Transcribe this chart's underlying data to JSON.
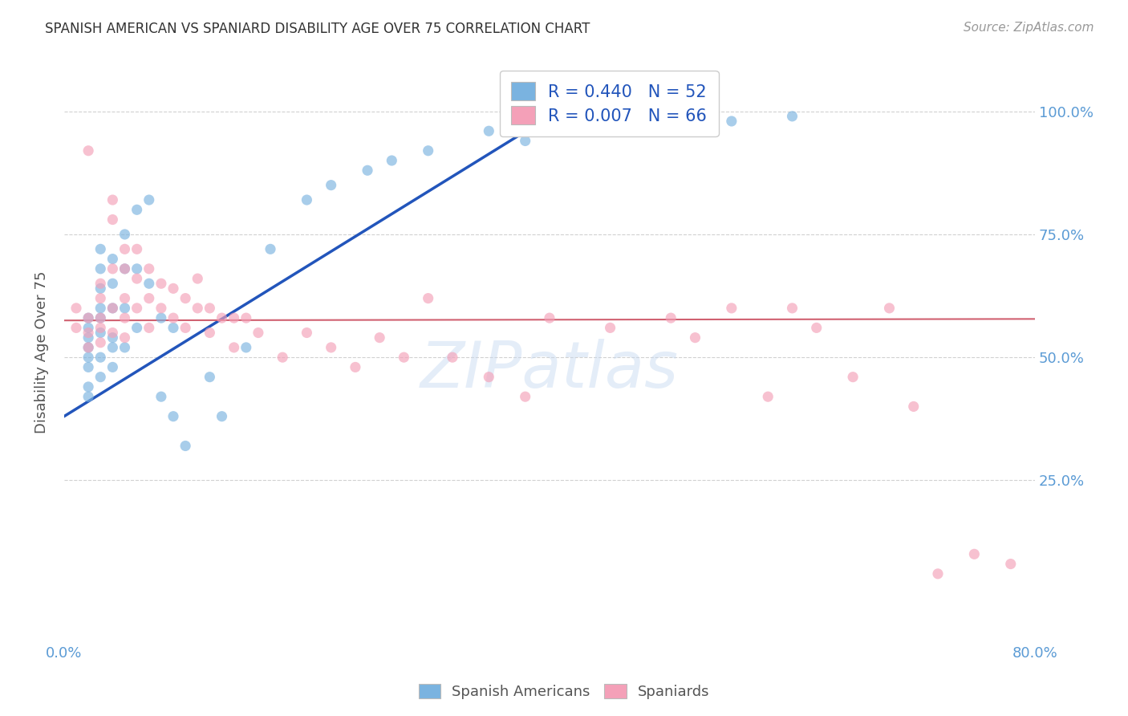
{
  "title": "SPANISH AMERICAN VS SPANIARD DISABILITY AGE OVER 75 CORRELATION CHART",
  "source": "Source: ZipAtlas.com",
  "ylabel": "Disability Age Over 75",
  "legend_R_blue": "R = 0.440   N = 52",
  "legend_R_pink": "R = 0.007   N = 66",
  "watermark": "ZIPatlas",
  "blue_color": "#7ab3e0",
  "pink_color": "#f4a0b8",
  "blue_line_color": "#2255bb",
  "pink_line_color": "#d06070",
  "legend_blue_label": "Spanish Americans",
  "legend_pink_label": "Spaniards",
  "xlim": [
    0.0,
    0.8
  ],
  "ylim": [
    -0.08,
    1.1
  ],
  "ytick_vals": [
    0.25,
    0.5,
    0.75,
    1.0
  ],
  "ytick_labels": [
    "25.0%",
    "50.0%",
    "75.0%",
    "100.0%"
  ],
  "xtick_show": {
    "0.0": "0.0%",
    "0.8": "80.0%"
  },
  "blue_scatter_x": [
    0.02,
    0.02,
    0.02,
    0.02,
    0.02,
    0.02,
    0.02,
    0.02,
    0.03,
    0.03,
    0.03,
    0.03,
    0.03,
    0.03,
    0.03,
    0.03,
    0.04,
    0.04,
    0.04,
    0.04,
    0.04,
    0.04,
    0.05,
    0.05,
    0.05,
    0.05,
    0.06,
    0.06,
    0.06,
    0.07,
    0.07,
    0.08,
    0.08,
    0.09,
    0.09,
    0.1,
    0.12,
    0.13,
    0.15,
    0.17,
    0.2,
    0.22,
    0.25,
    0.27,
    0.3,
    0.35,
    0.38,
    0.42,
    0.45,
    0.5,
    0.55,
    0.6
  ],
  "blue_scatter_y": [
    0.56,
    0.54,
    0.52,
    0.58,
    0.5,
    0.48,
    0.44,
    0.42,
    0.6,
    0.58,
    0.55,
    0.68,
    0.64,
    0.72,
    0.5,
    0.46,
    0.7,
    0.65,
    0.6,
    0.54,
    0.52,
    0.48,
    0.75,
    0.68,
    0.6,
    0.52,
    0.8,
    0.68,
    0.56,
    0.82,
    0.65,
    0.58,
    0.42,
    0.56,
    0.38,
    0.32,
    0.46,
    0.38,
    0.52,
    0.72,
    0.82,
    0.85,
    0.88,
    0.9,
    0.92,
    0.96,
    0.94,
    0.98,
    0.99,
    1.0,
    0.98,
    0.99
  ],
  "pink_scatter_x": [
    0.01,
    0.01,
    0.02,
    0.02,
    0.02,
    0.02,
    0.03,
    0.03,
    0.03,
    0.03,
    0.03,
    0.04,
    0.04,
    0.04,
    0.04,
    0.04,
    0.05,
    0.05,
    0.05,
    0.05,
    0.05,
    0.06,
    0.06,
    0.06,
    0.07,
    0.07,
    0.07,
    0.08,
    0.08,
    0.09,
    0.09,
    0.1,
    0.1,
    0.11,
    0.11,
    0.12,
    0.12,
    0.13,
    0.14,
    0.14,
    0.15,
    0.16,
    0.18,
    0.2,
    0.22,
    0.24,
    0.26,
    0.28,
    0.3,
    0.32,
    0.35,
    0.38,
    0.4,
    0.45,
    0.5,
    0.52,
    0.55,
    0.58,
    0.6,
    0.62,
    0.65,
    0.68,
    0.7,
    0.72,
    0.75,
    0.78
  ],
  "pink_scatter_y": [
    0.6,
    0.56,
    0.92,
    0.58,
    0.55,
    0.52,
    0.65,
    0.62,
    0.58,
    0.56,
    0.53,
    0.82,
    0.78,
    0.68,
    0.6,
    0.55,
    0.72,
    0.68,
    0.62,
    0.58,
    0.54,
    0.72,
    0.66,
    0.6,
    0.68,
    0.62,
    0.56,
    0.65,
    0.6,
    0.64,
    0.58,
    0.62,
    0.56,
    0.66,
    0.6,
    0.6,
    0.55,
    0.58,
    0.58,
    0.52,
    0.58,
    0.55,
    0.5,
    0.55,
    0.52,
    0.48,
    0.54,
    0.5,
    0.62,
    0.5,
    0.46,
    0.42,
    0.58,
    0.56,
    0.58,
    0.54,
    0.6,
    0.42,
    0.6,
    0.56,
    0.46,
    0.6,
    0.4,
    0.06,
    0.1,
    0.08
  ],
  "blue_line_x": [
    0.0,
    0.42
  ],
  "blue_line_y": [
    0.38,
    1.02
  ],
  "pink_line_x": [
    0.0,
    0.8
  ],
  "pink_line_y": [
    0.575,
    0.578
  ],
  "background_color": "#ffffff",
  "grid_color": "#cccccc",
  "title_color": "#333333",
  "source_color": "#999999",
  "label_color": "#5b9bd5",
  "ylabel_color": "#555555"
}
